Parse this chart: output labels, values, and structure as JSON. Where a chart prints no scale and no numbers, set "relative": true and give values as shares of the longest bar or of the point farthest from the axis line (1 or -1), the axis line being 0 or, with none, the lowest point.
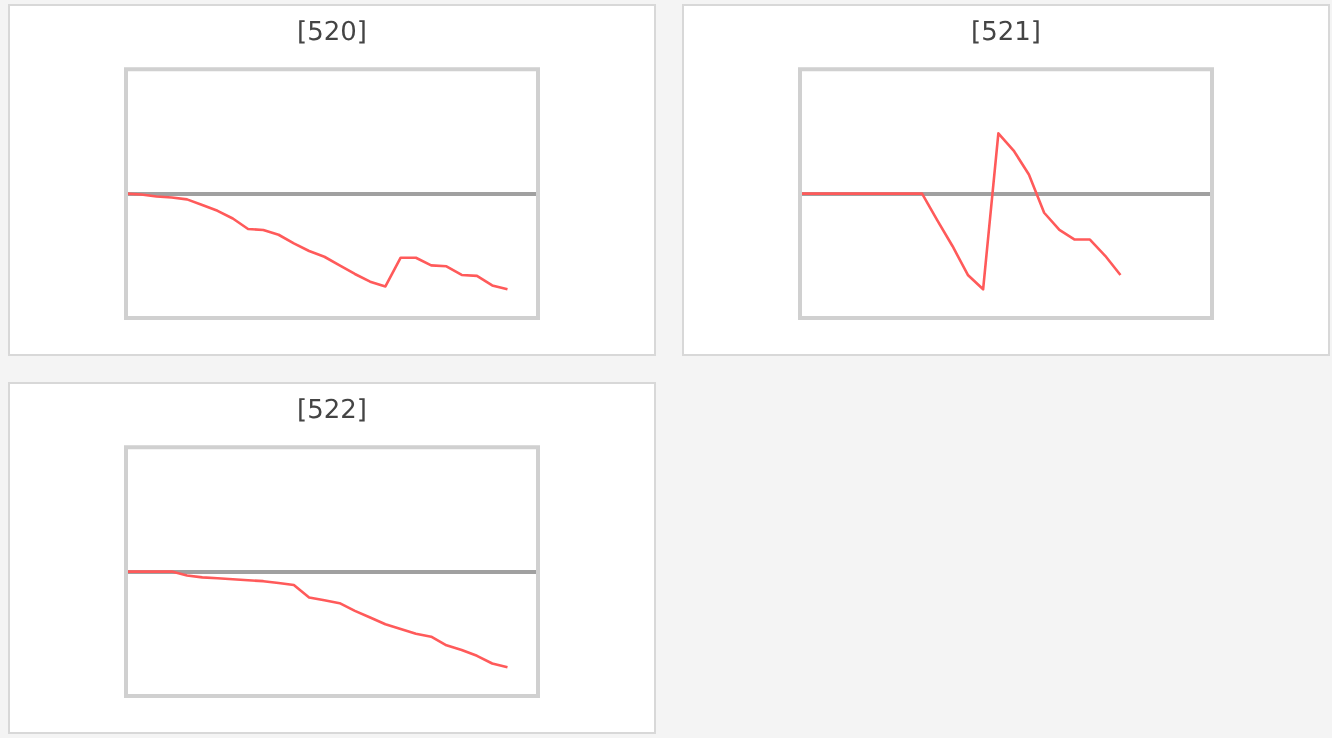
{
  "chart_data": [
    {
      "type": "line",
      "title": "[520]",
      "relative": true,
      "legend": false,
      "color": "#ff5a5a",
      "categories": [
        null,
        null,
        null,
        null,
        null,
        null,
        null,
        null,
        null,
        null,
        null,
        null,
        null,
        null,
        null,
        null,
        null,
        null,
        null,
        null,
        null,
        null,
        null,
        null,
        null,
        null,
        null,
        null
      ],
      "values": [
        0,
        -0.01,
        -0.03,
        -0.04,
        -0.06,
        -0.12,
        -0.18,
        -0.26,
        -0.37,
        -0.38,
        -0.43,
        -0.52,
        -0.6,
        -0.66,
        -0.75,
        -0.84,
        -0.92,
        -0.97,
        -0.67,
        -0.67,
        -0.75,
        -0.76,
        -0.85,
        -0.86,
        -0.96,
        -1,
        null,
        null
      ]
    },
    {
      "type": "line",
      "title": "[521]",
      "relative": true,
      "legend": false,
      "color": "#ff5a5a",
      "categories": [
        null,
        null,
        null,
        null,
        null,
        null,
        null,
        null,
        null,
        null,
        null,
        null,
        null,
        null,
        null,
        null,
        null,
        null,
        null,
        null,
        null,
        null,
        null,
        null,
        null,
        null,
        null,
        null
      ],
      "values": [
        0,
        0,
        0,
        0,
        0,
        0,
        0,
        0,
        0,
        -0.28,
        -0.55,
        -0.85,
        -1,
        0.63,
        0.45,
        0.2,
        -0.2,
        -0.38,
        -0.48,
        -0.48,
        -0.65,
        -0.85,
        null,
        null,
        null,
        null,
        null,
        null
      ]
    },
    {
      "type": "line",
      "title": "[522]",
      "relative": true,
      "legend": false,
      "color": "#ff5a5a",
      "categories": [
        null,
        null,
        null,
        null,
        null,
        null,
        null,
        null,
        null,
        null,
        null,
        null,
        null,
        null,
        null,
        null,
        null,
        null,
        null,
        null,
        null,
        null,
        null,
        null,
        null,
        null,
        null,
        null
      ],
      "values": [
        0,
        0,
        0,
        0,
        -0.04,
        -0.06,
        -0.07,
        -0.08,
        -0.09,
        -0.1,
        -0.12,
        -0.14,
        -0.27,
        -0.3,
        -0.33,
        -0.41,
        -0.48,
        -0.55,
        -0.6,
        -0.65,
        -0.68,
        -0.77,
        -0.82,
        -0.88,
        -0.96,
        -1,
        null,
        null
      ]
    }
  ]
}
